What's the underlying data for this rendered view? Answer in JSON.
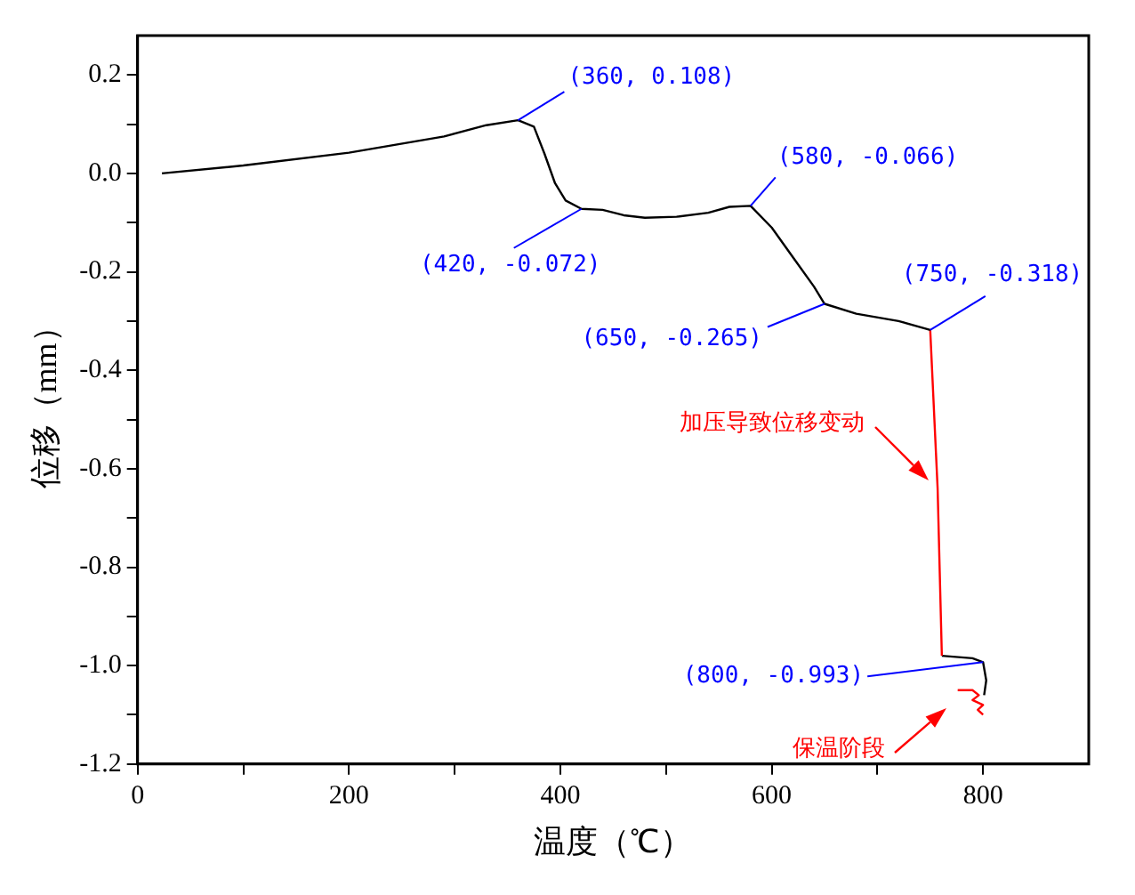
{
  "chart_data": {
    "type": "line",
    "xlabel": "温度（℃）",
    "ylabel": "位移（mm）",
    "xlim": [
      0,
      900
    ],
    "xticks": [
      0,
      {
        "value": 100,
        "label": null
      },
      200,
      {
        "value": 300,
        "label": null
      },
      400,
      {
        "value": 500,
        "label": null
      },
      600,
      {
        "value": 700,
        "label": null
      },
      800
    ],
    "ylim": [
      -1.2,
      0.28
    ],
    "yticks": [
      {
        "value": -1.2,
        "label": "-1.2"
      },
      {
        "value": -1.1,
        "label": null
      },
      {
        "value": -1.0,
        "label": "-1.0"
      },
      {
        "value": -0.9,
        "label": null
      },
      {
        "value": -0.8,
        "label": "-0.8"
      },
      {
        "value": -0.7,
        "label": null
      },
      {
        "value": -0.6,
        "label": "-0.6"
      },
      {
        "value": -0.5,
        "label": null
      },
      {
        "value": -0.4,
        "label": "-0.4"
      },
      {
        "value": -0.3,
        "label": null
      },
      {
        "value": -0.2,
        "label": "-0.2"
      },
      {
        "value": -0.1,
        "label": null
      },
      {
        "value": 0,
        "label": "0.0"
      },
      {
        "value": 0.1,
        "label": null
      },
      {
        "value": 0.2,
        "label": "0.2"
      }
    ],
    "grid": false,
    "legend": false,
    "marker": "none",
    "line_style": "solid",
    "series": [
      {
        "color": "#000000",
        "x": [
          23,
          100,
          200,
          290,
          330,
          360,
          375,
          385,
          395,
          405,
          420,
          440,
          460,
          480,
          510,
          540,
          560,
          580,
          600,
          620,
          640,
          650,
          680,
          720,
          750
        ],
        "values": [
          0,
          0.016,
          0.042,
          0.075,
          0.098,
          0.108,
          0.095,
          0.04,
          -0.02,
          -0.055,
          -0.072,
          -0.074,
          -0.085,
          -0.09,
          -0.088,
          -0.08,
          -0.068,
          -0.066,
          -0.11,
          -0.17,
          -0.23,
          -0.265,
          -0.285,
          -0.3,
          -0.318
        ]
      },
      {
        "color": "#ff0000",
        "x": [
          750,
          757,
          761
        ],
        "values": [
          -0.318,
          -0.64,
          -0.98
        ]
      },
      {
        "color": "#000000",
        "x": [
          761,
          790,
          800,
          803,
          801
        ],
        "values": [
          -0.98,
          -0.985,
          -0.993,
          -1.03,
          -1.06
        ]
      },
      {
        "color": "#ff0000",
        "x": [
          776,
          790,
          796,
          790,
          800,
          795,
          800
        ],
        "values": [
          -1.05,
          -1.05,
          -1.06,
          -1.07,
          -1.08,
          -1.09,
          -1.1
        ]
      }
    ],
    "annotations": [
      {
        "text": "(360, 0.108)",
        "x": 360,
        "y": 0.108
      },
      {
        "text": "(420, -0.072)",
        "x": 420,
        "y": -0.072
      },
      {
        "text": "(580, -0.066)",
        "x": 580,
        "y": -0.066
      },
      {
        "text": "(650, -0.265)",
        "x": 650,
        "y": -0.265
      },
      {
        "text": "(750, -0.318)",
        "x": 750,
        "y": -0.318
      },
      {
        "text": "(800, -0.993)",
        "x": 800,
        "y": -0.993
      },
      "加压导致位移变动",
      "保温阶段"
    ]
  }
}
